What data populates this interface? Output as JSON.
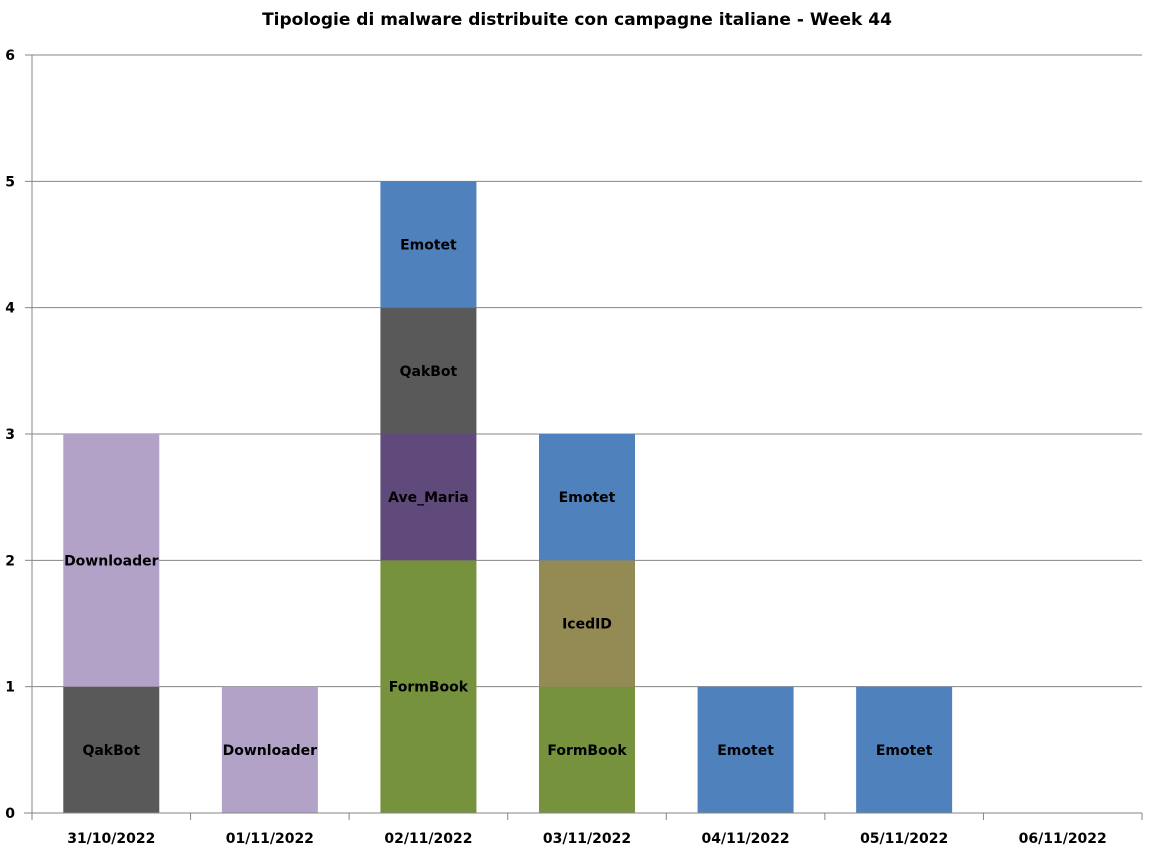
{
  "chart_data": {
    "type": "bar",
    "stacked": true,
    "title": "Tipologie  di malware distribuite con campagne italiane - Week 44",
    "xlabel": "",
    "ylabel": "",
    "ylim": [
      0,
      6
    ],
    "yticks": [
      "0",
      "1",
      "2",
      "3",
      "4",
      "5",
      "6"
    ],
    "grid": true,
    "legend": "none",
    "categories": [
      "31/10/2022",
      "01/11/2022",
      "02/11/2022",
      "03/11/2022",
      "04/11/2022",
      "05/11/2022",
      "06/11/2022"
    ],
    "colors": {
      "QakBot": "#595959",
      "Downloader": "#b3a2c7",
      "FormBook": "#76923c",
      "Ave_Maria": "#604a7b",
      "Emotet": "#4f81bd",
      "IcedID": "#948a54"
    },
    "stacks": [
      [
        {
          "label": "QakBot",
          "value": 1
        },
        {
          "label": "Downloader",
          "value": 2
        }
      ],
      [
        {
          "label": "Downloader",
          "value": 1
        }
      ],
      [
        {
          "label": "FormBook",
          "value": 2
        },
        {
          "label": "Ave_Maria",
          "value": 1
        },
        {
          "label": "QakBot",
          "value": 1
        },
        {
          "label": "Emotet",
          "value": 1
        }
      ],
      [
        {
          "label": "FormBook",
          "value": 1
        },
        {
          "label": "IcedID",
          "value": 1
        },
        {
          "label": "Emotet",
          "value": 1
        }
      ],
      [
        {
          "label": "Emotet",
          "value": 1
        }
      ],
      [
        {
          "label": "Emotet",
          "value": 1
        }
      ],
      []
    ]
  }
}
